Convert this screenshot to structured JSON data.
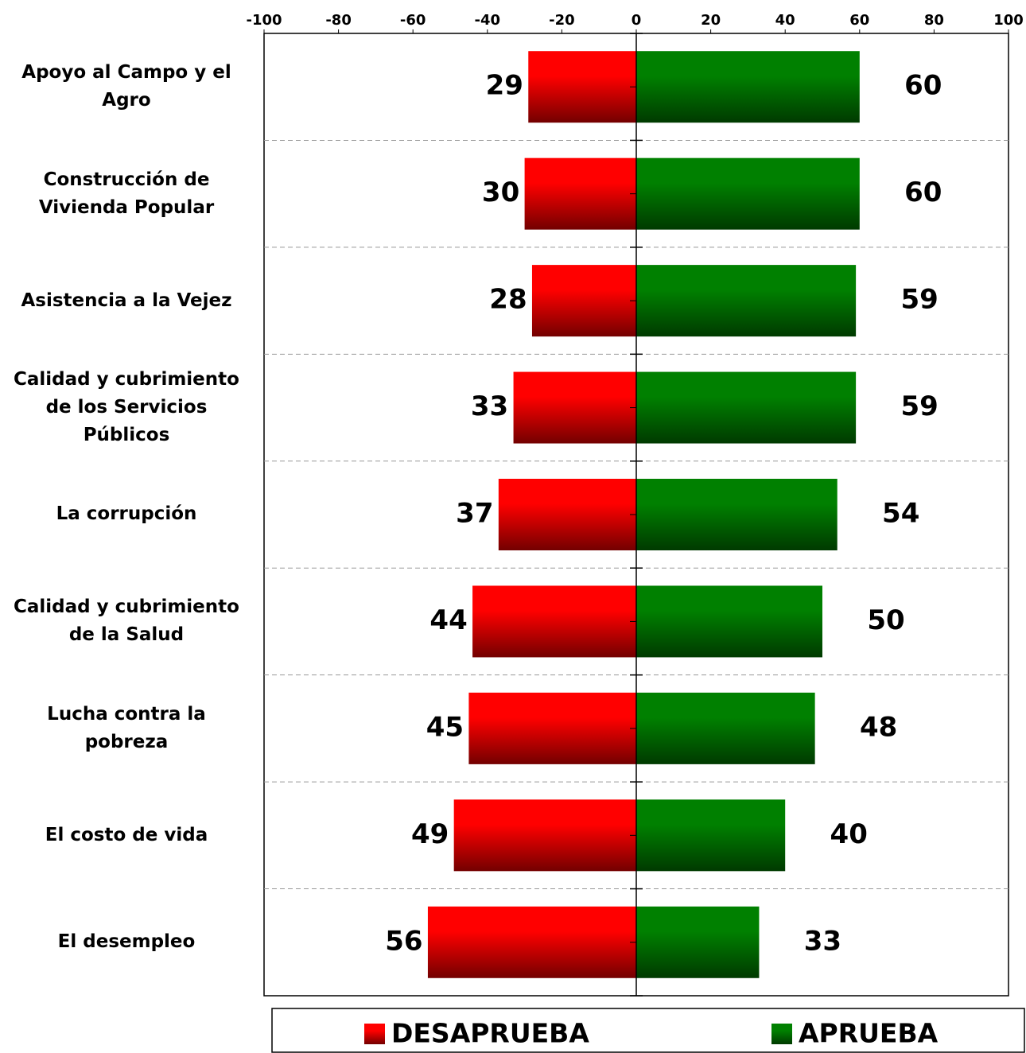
{
  "chart_data": {
    "type": "diverging-bar",
    "categories": [
      "Apoyo al Campo y el Agro",
      "Construcción de Vivienda Popular",
      "Asistencia a la Vejez",
      "Calidad y cubrimiento de los Servicios Públicos",
      "La corrupción",
      "Calidad y cubrimiento de la Salud",
      "Lucha contra la pobreza",
      "El costo de vida",
      "El desempleo"
    ],
    "series": [
      {
        "name": "DESAPRUEBA",
        "color": "#ff0000",
        "values": [
          -29,
          -30,
          -28,
          -33,
          -37,
          -44,
          -45,
          -49,
          -56
        ],
        "value_labels": [
          "29",
          "30",
          "28",
          "33",
          "37",
          "44",
          "45",
          "49",
          "56"
        ]
      },
      {
        "name": "APRUEBA",
        "color": "#008000",
        "values": [
          60,
          60,
          59,
          59,
          54,
          50,
          48,
          40,
          33
        ]
      }
    ],
    "xlim": [
      -100,
      100
    ],
    "xticks": [
      -100,
      -80,
      -60,
      -40,
      -20,
      0,
      20,
      40,
      60,
      80,
      100
    ]
  }
}
